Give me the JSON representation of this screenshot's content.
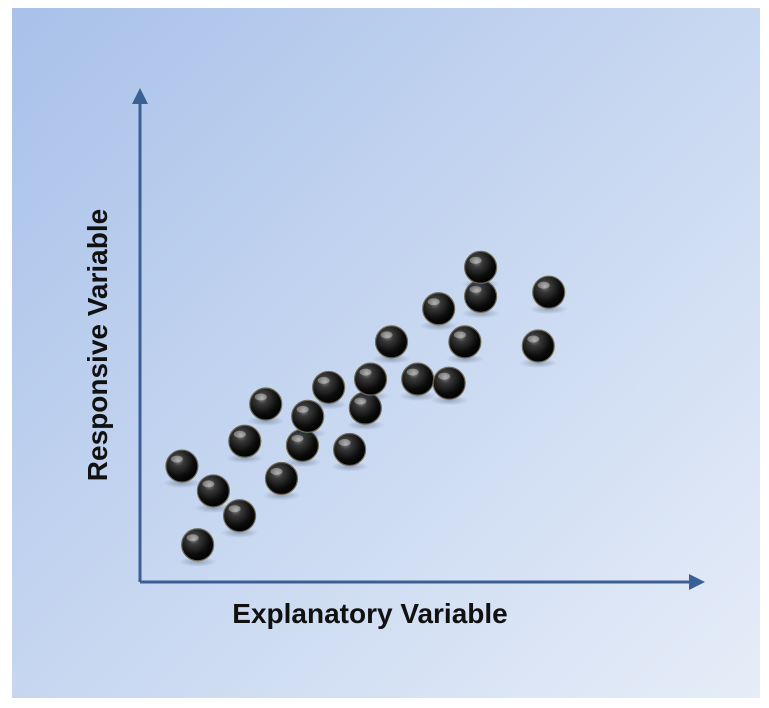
{
  "chart_data": {
    "type": "scatter",
    "title": "",
    "xlabel": "Explanatory Variable",
    "ylabel": "Responsive Variable",
    "xlim": [
      0,
      100
    ],
    "ylim": [
      0,
      100
    ],
    "grid": false,
    "legend": "none",
    "axis_color": "#3a5f93",
    "marker_color": "#111111",
    "points": [
      {
        "x": 8,
        "y": 28
      },
      {
        "x": 11,
        "y": 9
      },
      {
        "x": 14,
        "y": 22
      },
      {
        "x": 19,
        "y": 16
      },
      {
        "x": 20,
        "y": 34
      },
      {
        "x": 24,
        "y": 43
      },
      {
        "x": 27,
        "y": 25
      },
      {
        "x": 31,
        "y": 33
      },
      {
        "x": 32,
        "y": 40
      },
      {
        "x": 36,
        "y": 47
      },
      {
        "x": 40,
        "y": 32
      },
      {
        "x": 43,
        "y": 42
      },
      {
        "x": 44,
        "y": 49
      },
      {
        "x": 48,
        "y": 58
      },
      {
        "x": 53,
        "y": 49
      },
      {
        "x": 57,
        "y": 66
      },
      {
        "x": 59,
        "y": 48
      },
      {
        "x": 62,
        "y": 58
      },
      {
        "x": 65,
        "y": 69
      },
      {
        "x": 65,
        "y": 76
      },
      {
        "x": 76,
        "y": 57
      },
      {
        "x": 78,
        "y": 70
      }
    ]
  }
}
